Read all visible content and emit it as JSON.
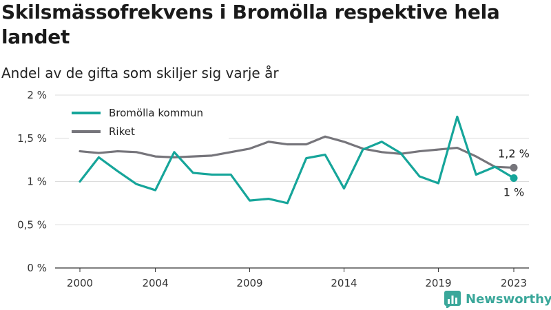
{
  "header": {
    "title": "Skilsmässofrekvens i Bromölla respektive hela landet",
    "subtitle": "Andel av de gifta som skiljer sig varje år"
  },
  "brand": {
    "name": "Newsworthy",
    "color": "#3aa79a"
  },
  "chart_data": {
    "type": "line",
    "title": "Skilsmässofrekvens i Bromölla respektive hela landet",
    "subtitle": "Andel av de gifta som skiljer sig varje år",
    "x": [
      2000,
      2001,
      2002,
      2003,
      2004,
      2005,
      2006,
      2007,
      2008,
      2009,
      2010,
      2011,
      2012,
      2013,
      2014,
      2015,
      2016,
      2017,
      2018,
      2019,
      2020,
      2021,
      2022,
      2023
    ],
    "x_ticks": [
      2000,
      2004,
      2009,
      2014,
      2019,
      2023
    ],
    "x_tick_labels": [
      "2000",
      "2004",
      "2009",
      "2014",
      "2019",
      "2023"
    ],
    "ylim": [
      0,
      2
    ],
    "y_ticks": [
      0,
      0.5,
      1,
      1.5,
      2
    ],
    "y_tick_labels": [
      "0 %",
      "0,5 %",
      "1 %",
      "1,5 %",
      "2 %"
    ],
    "grid": true,
    "legend": "top-left",
    "series": [
      {
        "name": "Bromölla kommun",
        "color": "#16a59a",
        "values": [
          1.0,
          1.28,
          1.12,
          0.97,
          0.9,
          1.34,
          1.1,
          1.08,
          1.08,
          0.78,
          0.8,
          0.75,
          1.27,
          1.31,
          0.92,
          1.37,
          1.46,
          1.33,
          1.06,
          0.98,
          1.75,
          1.08,
          1.17,
          1.04
        ],
        "end_label": "1 %"
      },
      {
        "name": "Riket",
        "color": "#76757b",
        "values": [
          1.35,
          1.33,
          1.35,
          1.34,
          1.29,
          1.28,
          1.29,
          1.3,
          1.34,
          1.38,
          1.46,
          1.43,
          1.43,
          1.52,
          1.46,
          1.38,
          1.34,
          1.32,
          1.35,
          1.37,
          1.39,
          1.29,
          1.17,
          1.16
        ],
        "end_label": "1,2 %"
      }
    ]
  }
}
